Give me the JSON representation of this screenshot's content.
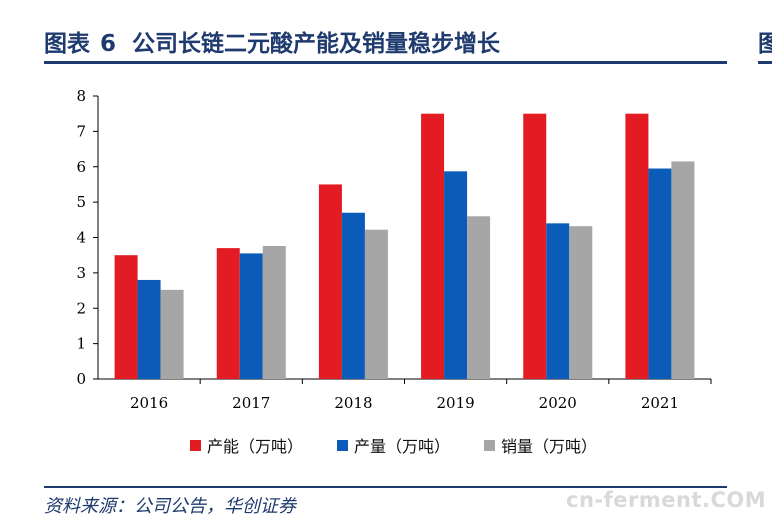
{
  "header": {
    "label": "图表",
    "number": "6",
    "title": "公司长链二元酸产能及销量稳步增长",
    "side_fragment": "图"
  },
  "chart_data": {
    "type": "bar",
    "categories": [
      "2016",
      "2017",
      "2018",
      "2019",
      "2020",
      "2021"
    ],
    "series": [
      {
        "name": "产能（万吨）",
        "color": "#e31c23",
        "values": [
          3.5,
          3.7,
          5.5,
          7.5,
          7.5,
          7.5
        ]
      },
      {
        "name": "产量（万吨）",
        "color": "#0b5cb8",
        "values": [
          2.8,
          3.55,
          4.7,
          5.87,
          4.4,
          5.95
        ]
      },
      {
        "name": "销量（万吨）",
        "color": "#a6a6a6",
        "values": [
          2.52,
          3.76,
          4.22,
          4.6,
          4.32,
          6.15
        ]
      }
    ],
    "ylim": [
      0,
      8
    ],
    "yticks": [
      "0",
      "1",
      "2",
      "3",
      "4",
      "5",
      "6",
      "7",
      "8"
    ],
    "legend_position": "bottom",
    "grid": false
  },
  "footer": {
    "source": "资料来源：公司公告，华创证券",
    "watermark": "cn-ferment.COM"
  }
}
